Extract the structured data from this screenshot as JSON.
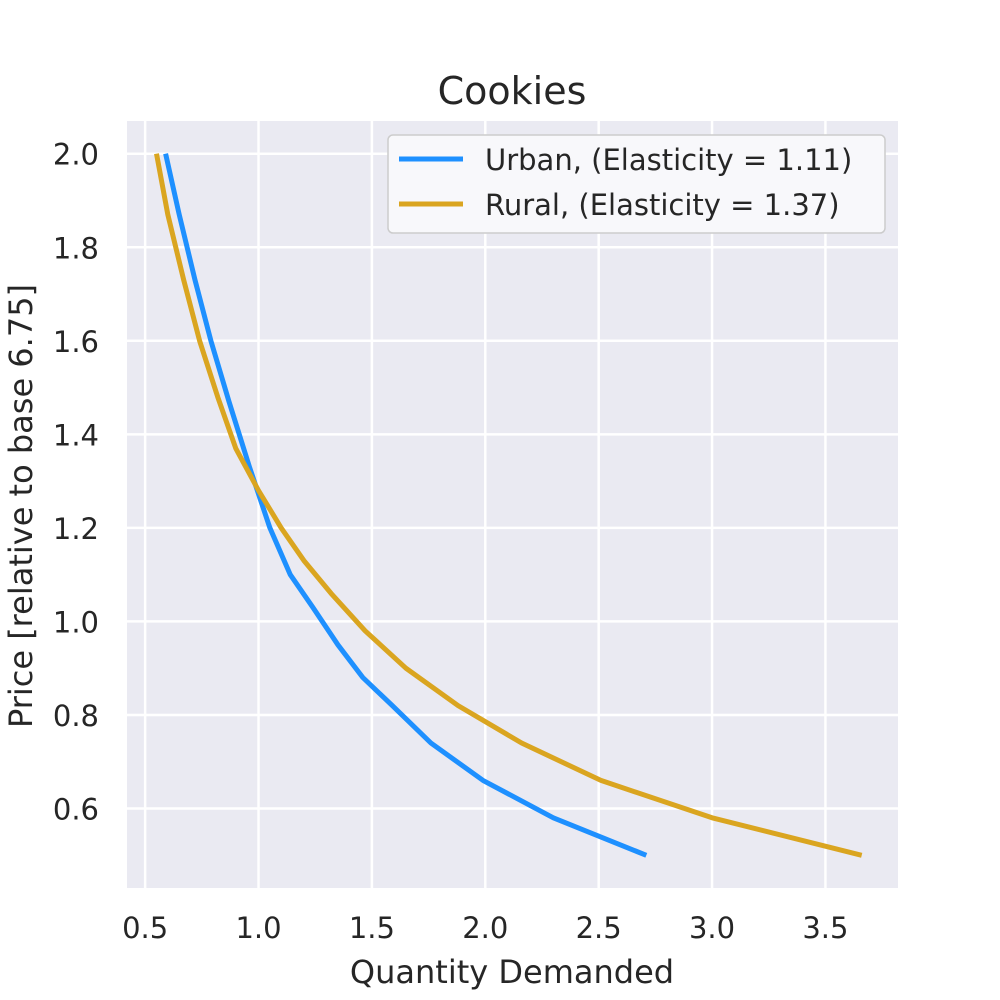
{
  "chart_data": {
    "type": "line",
    "title": "Cookies",
    "xlabel": "Quantity Demanded",
    "ylabel": "Price [relative to base 6.75]",
    "xlim": [
      0.42,
      3.82
    ],
    "ylim": [
      0.43,
      2.07
    ],
    "xticks": [
      0.5,
      1.0,
      1.5,
      2.0,
      2.5,
      3.0,
      3.5
    ],
    "xtick_labels": [
      "0.5",
      "1.0",
      "1.5",
      "2.0",
      "2.5",
      "3.0",
      "3.5"
    ],
    "yticks": [
      0.6,
      0.8,
      1.0,
      1.2,
      1.4,
      1.6,
      1.8,
      2.0
    ],
    "ytick_labels": [
      "0.6",
      "0.8",
      "1.0",
      "1.2",
      "1.4",
      "1.6",
      "1.8",
      "2.0"
    ],
    "grid": true,
    "legend_position": "top-right",
    "colors": {
      "background": "#eaeaf2",
      "grid": "#ffffff",
      "text": "#262626"
    },
    "series": [
      {
        "name": "Urban, (Elasticity = 1.11)",
        "color": "#1e90ff",
        "x": [
          0.59,
          0.65,
          0.72,
          0.79,
          0.87,
          0.96,
          1.05,
          1.14,
          1.24,
          1.35,
          1.46,
          1.59,
          1.76,
          1.99,
          2.3,
          2.71
        ],
        "y": [
          2.0,
          1.87,
          1.73,
          1.6,
          1.47,
          1.33,
          1.2,
          1.1,
          1.03,
          0.95,
          0.88,
          0.82,
          0.74,
          0.66,
          0.58,
          0.5
        ]
      },
      {
        "name": "Rural, (Elasticity = 1.37)",
        "color": "#daa520",
        "x": [
          0.55,
          0.6,
          0.67,
          0.74,
          0.82,
          0.9,
          1.0,
          1.1,
          1.2,
          1.32,
          1.47,
          1.65,
          1.88,
          2.16,
          2.51,
          3.0,
          3.66
        ],
        "y": [
          2.0,
          1.87,
          1.73,
          1.6,
          1.48,
          1.37,
          1.28,
          1.2,
          1.13,
          1.06,
          0.98,
          0.9,
          0.82,
          0.74,
          0.66,
          0.58,
          0.5
        ]
      }
    ]
  }
}
